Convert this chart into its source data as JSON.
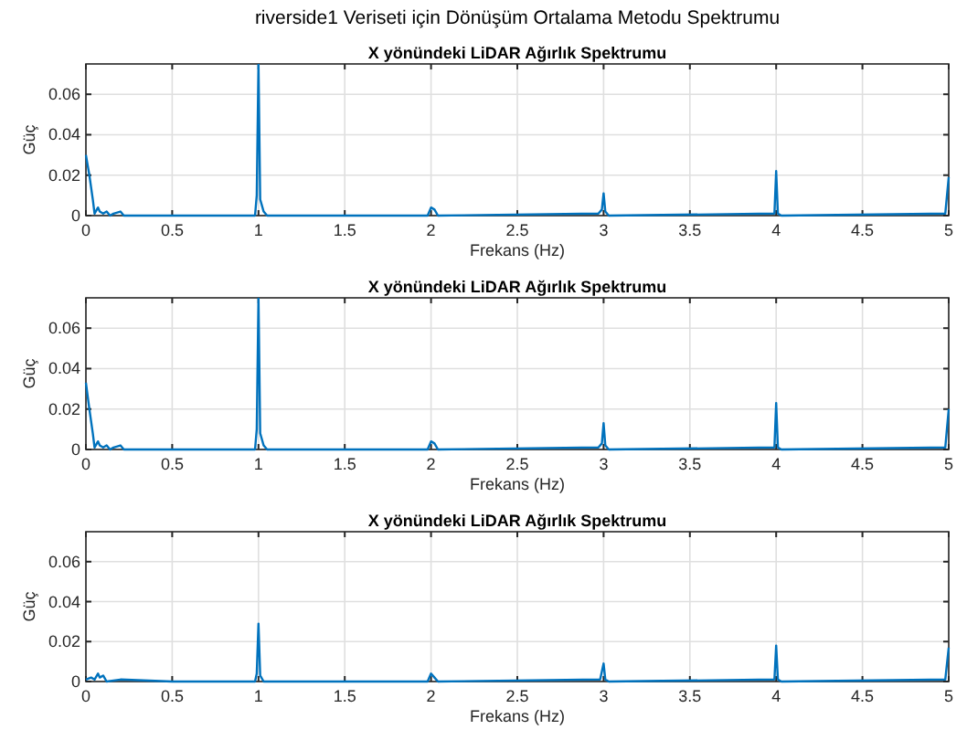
{
  "chart_data": [
    {
      "type": "line",
      "title": "X yönündeki LiDAR Ağırlık Spektrumu",
      "annotations": [
        "riverside1 Veriseti için Dönüşüm Ortalama Metodu Spektrumu"
      ],
      "xlabel": "Frekans (Hz)",
      "ylabel": "Güç",
      "xlim": [
        0,
        5
      ],
      "xticks": [
        0,
        0.5,
        1,
        1.5,
        2,
        2.5,
        3,
        3.5,
        4,
        4.5,
        5
      ],
      "ylim": [
        0,
        0.075
      ],
      "yticks": [
        0,
        0.02,
        0.04,
        0.06
      ],
      "grid": true,
      "series": [
        {
          "color": "#0072bd",
          "x": [
            0,
            0.02,
            0.04,
            0.05,
            0.07,
            0.08,
            0.1,
            0.12,
            0.14,
            0.16,
            0.2,
            0.22,
            0.5,
            0.98,
            0.99,
            1.0,
            1.01,
            1.03,
            1.05,
            1.98,
            2.0,
            2.02,
            2.04,
            2.97,
            2.99,
            3.0,
            3.01,
            3.03,
            3.99,
            4.0,
            4.01,
            4.03,
            4.98,
            5.0
          ],
          "values": [
            0.03,
            0.02,
            0.008,
            0.001,
            0.004,
            0.002,
            0.001,
            0.002,
            0.0,
            0.001,
            0.002,
            0.0,
            0.0,
            0.0,
            0.01,
            0.075,
            0.008,
            0.002,
            0.0,
            0.0,
            0.004,
            0.003,
            0.0,
            0.001,
            0.003,
            0.011,
            0.002,
            0.0,
            0.001,
            0.022,
            0.001,
            0.0,
            0.001,
            0.019
          ]
        }
      ]
    },
    {
      "type": "line",
      "title": "X yönündeki LiDAR Ağırlık Spektrumu",
      "xlabel": "Frekans (Hz)",
      "ylabel": "Güç",
      "xlim": [
        0,
        5
      ],
      "xticks": [
        0,
        0.5,
        1,
        1.5,
        2,
        2.5,
        3,
        3.5,
        4,
        4.5,
        5
      ],
      "ylim": [
        0,
        0.075
      ],
      "yticks": [
        0,
        0.02,
        0.04,
        0.06
      ],
      "grid": true,
      "series": [
        {
          "color": "#0072bd",
          "x": [
            0,
            0.02,
            0.04,
            0.05,
            0.07,
            0.08,
            0.1,
            0.12,
            0.14,
            0.16,
            0.2,
            0.22,
            0.5,
            0.98,
            0.99,
            1.0,
            1.01,
            1.03,
            1.05,
            1.98,
            2.0,
            2.02,
            2.04,
            2.97,
            2.99,
            3.0,
            3.01,
            3.03,
            3.99,
            4.0,
            4.01,
            4.03,
            4.98,
            5.0
          ],
          "values": [
            0.033,
            0.02,
            0.008,
            0.001,
            0.004,
            0.002,
            0.001,
            0.002,
            0.0,
            0.001,
            0.002,
            0.0,
            0.0,
            0.0,
            0.01,
            0.075,
            0.008,
            0.002,
            0.0,
            0.0,
            0.004,
            0.003,
            0.0,
            0.001,
            0.003,
            0.013,
            0.002,
            0.0,
            0.001,
            0.023,
            0.001,
            0.0,
            0.001,
            0.02
          ]
        }
      ]
    },
    {
      "type": "line",
      "title": "X yönündeki LiDAR Ağırlık Spektrumu",
      "xlabel": "Frekans (Hz)",
      "ylabel": "Güç",
      "xlim": [
        0,
        5
      ],
      "xticks": [
        0,
        0.5,
        1,
        1.5,
        2,
        2.5,
        3,
        3.5,
        4,
        4.5,
        5
      ],
      "ylim": [
        0,
        0.075
      ],
      "yticks": [
        0,
        0.02,
        0.04,
        0.06
      ],
      "grid": true,
      "series": [
        {
          "color": "#0072bd",
          "x": [
            0,
            0.03,
            0.05,
            0.07,
            0.08,
            0.1,
            0.12,
            0.2,
            0.5,
            0.98,
            0.99,
            1.0,
            1.01,
            1.03,
            1.98,
            2.0,
            2.02,
            2.04,
            2.98,
            3.0,
            3.01,
            3.03,
            3.99,
            4.0,
            4.01,
            4.03,
            4.98,
            5.0
          ],
          "values": [
            0.001,
            0.002,
            0.001,
            0.004,
            0.002,
            0.003,
            0.0,
            0.001,
            0.0,
            0.0,
            0.004,
            0.029,
            0.003,
            0.0,
            0.0,
            0.004,
            0.002,
            0.0,
            0.001,
            0.009,
            0.001,
            0.0,
            0.001,
            0.018,
            0.001,
            0.0,
            0.001,
            0.017
          ]
        }
      ]
    }
  ]
}
